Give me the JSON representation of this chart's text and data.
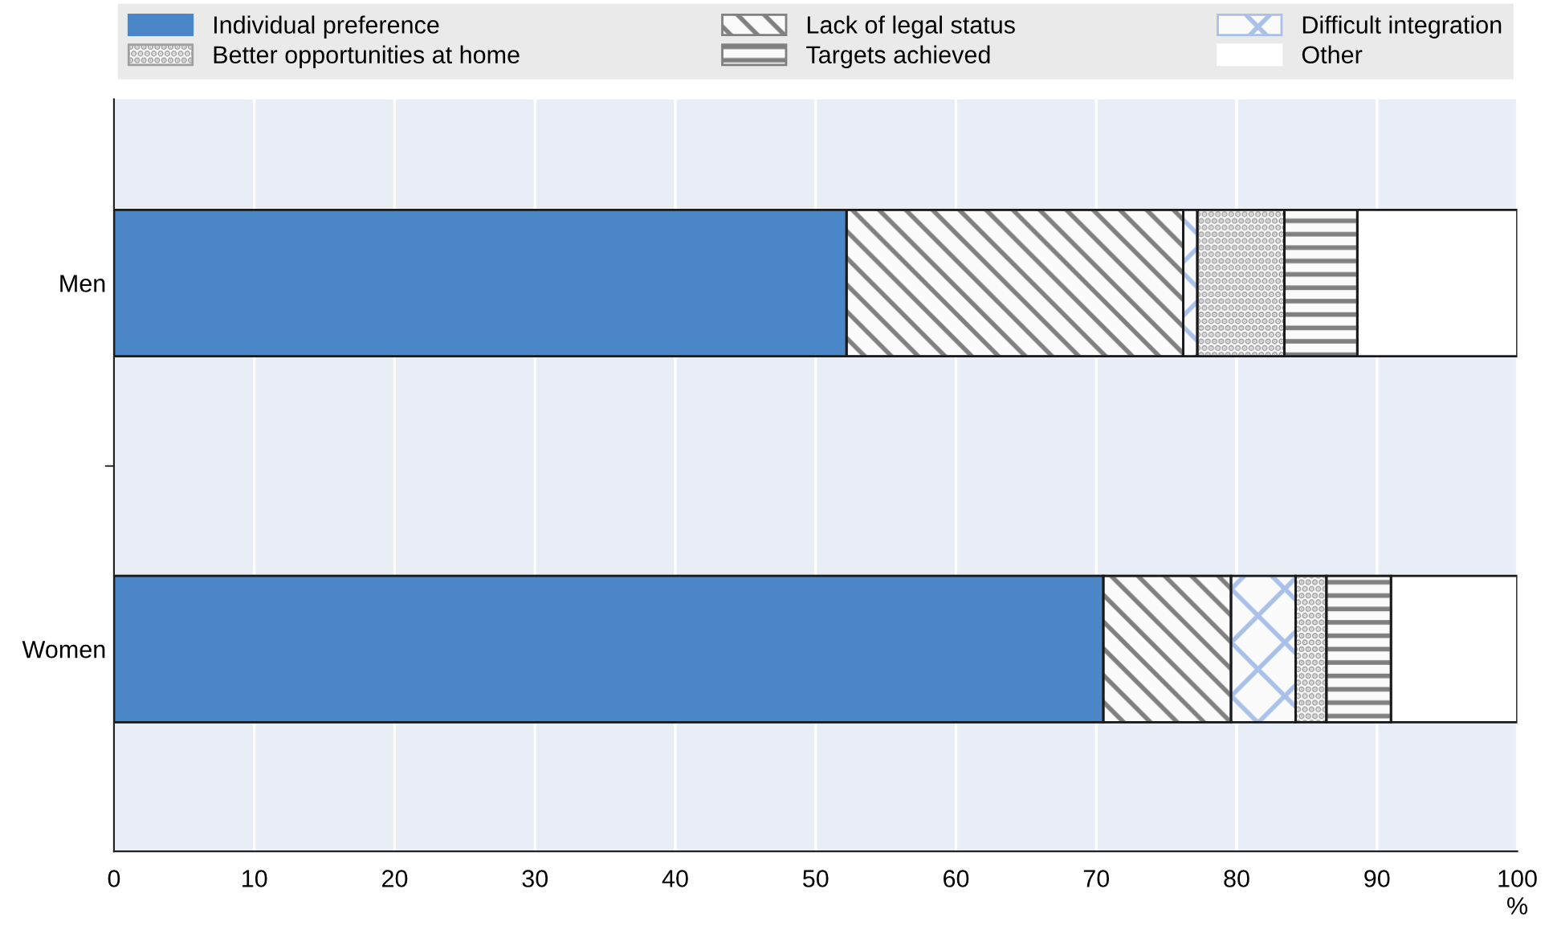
{
  "chart_data": {
    "type": "bar",
    "orientation": "horizontal",
    "stacked": true,
    "xlabel": "%",
    "categories": [
      "Men",
      "Women"
    ],
    "series": [
      {
        "name": "Individual preference",
        "color": "#4a86c8",
        "values": [
          52.2,
          70.5
        ]
      },
      {
        "name": "Lack of legal status",
        "color": "#808080",
        "values": [
          24.0,
          9.1
        ]
      },
      {
        "name": "Difficult integration",
        "color": "#a9c1e8",
        "values": [
          1.0,
          4.6
        ]
      },
      {
        "name": "Better opportunities at home",
        "color": "#a0a0a0",
        "values": [
          6.2,
          2.2
        ]
      },
      {
        "name": "Targets achieved",
        "color": "#808080",
        "values": [
          5.2,
          4.6
        ]
      },
      {
        "name": "Other",
        "color": "#ffffff",
        "values": [
          11.4,
          9.0
        ]
      }
    ],
    "xlim": [
      0,
      100
    ],
    "xticks": [
      0,
      10,
      20,
      30,
      40,
      50,
      60,
      70,
      80,
      90,
      100
    ],
    "grid": "x",
    "legend": "top"
  }
}
